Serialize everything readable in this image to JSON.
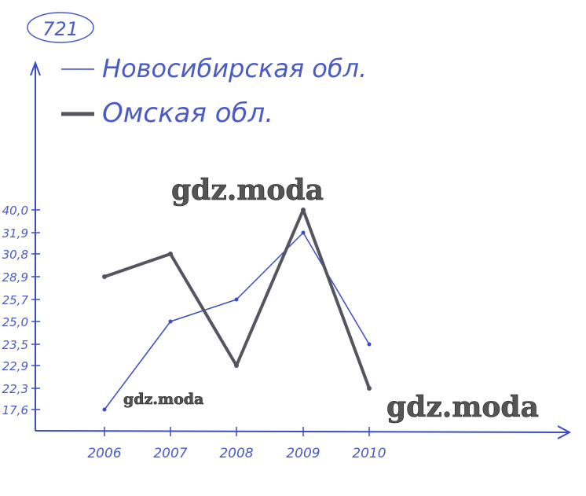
{
  "problem_number": "721",
  "chart_data": {
    "type": "line",
    "title": "",
    "xlabel": "",
    "ylabel": "",
    "categories": [
      "2006",
      "2007",
      "2008",
      "2009",
      "2010"
    ],
    "y_tick_labels": [
      "40,0",
      "31,9",
      "30,8",
      "28,9",
      "25,7",
      "25,0",
      "23,5",
      "22,9",
      "22,3",
      "17,6"
    ],
    "y_tick_values": [
      40.0,
      31.9,
      30.8,
      28.9,
      25.7,
      25.0,
      23.5,
      22.9,
      22.3,
      17.6
    ],
    "grid": false,
    "legend_placement": "top-left",
    "series": [
      {
        "name": "Новосибирская обл.",
        "values": [
          17.6,
          25.0,
          25.7,
          31.9,
          23.5
        ],
        "color": "#3b4bc8",
        "style": "thin"
      },
      {
        "name": "Омская обл.",
        "values": [
          28.9,
          30.8,
          22.9,
          40.0,
          22.3
        ],
        "color": "#555560",
        "style": "thick"
      }
    ]
  },
  "watermarks": [
    "gdz.moda",
    "gdz.moda",
    "gdz.moda"
  ],
  "colors": {
    "ink": "#4a5bc4",
    "axis": "#3b4bc8"
  }
}
